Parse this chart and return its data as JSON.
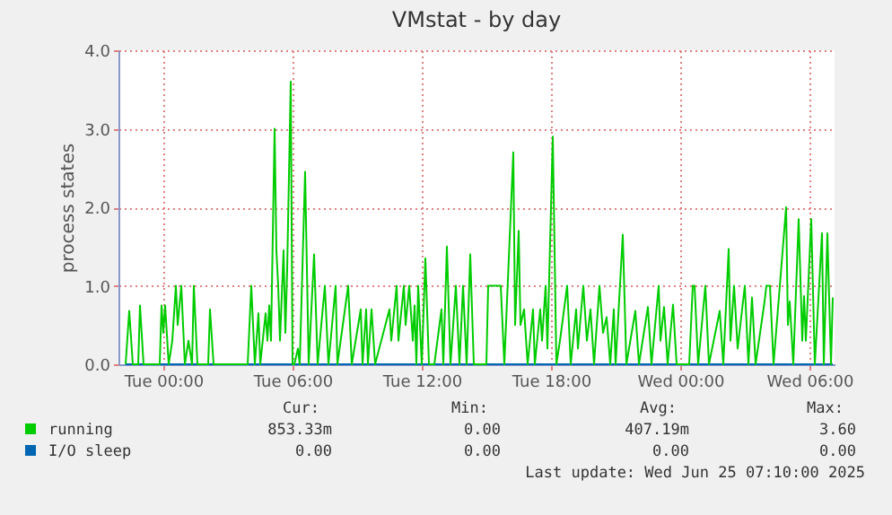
{
  "chart_data": {
    "type": "line",
    "title": "VMstat - by day",
    "ylabel": "process states",
    "xlim": [
      "2025-06-23T21:55",
      "2025-06-25T07:10"
    ],
    "ylim": [
      0,
      4
    ],
    "xticks": [
      {
        "value": "2025-06-24T00:00",
        "label": "Tue 00:00"
      },
      {
        "value": "2025-06-24T06:00",
        "label": "Tue 06:00"
      },
      {
        "value": "2025-06-24T12:00",
        "label": "Tue 12:00"
      },
      {
        "value": "2025-06-24T18:00",
        "label": "Tue 18:00"
      },
      {
        "value": "2025-06-25T00:00",
        "label": "Wed 00:00"
      },
      {
        "value": "2025-06-25T06:00",
        "label": "Wed 06:00"
      }
    ],
    "yticks": [
      {
        "value": 0,
        "label": "0.0"
      },
      {
        "value": 1,
        "label": "1.0"
      },
      {
        "value": 2,
        "label": "2.0"
      },
      {
        "value": 3,
        "label": "3.0"
      },
      {
        "value": 4,
        "label": "4.0"
      }
    ],
    "grid": true,
    "legend": "bottom",
    "line_style": "solid",
    "marker": "none",
    "series": [
      {
        "name": "I/O sleep",
        "color": "#0066b3",
        "x": [
          "2025-06-23T22:15",
          "2025-06-25T07:05"
        ],
        "values": [
          0,
          0
        ]
      },
      {
        "name": "running",
        "color": "#00cc00",
        "x": [
          "2025-06-23T22:15",
          "2025-06-23T22:25",
          "2025-06-23T22:35",
          "2025-06-23T22:50",
          "2025-06-23T22:55",
          "2025-06-23T23:05",
          "2025-06-23T23:50",
          "2025-06-23T23:55",
          "2025-06-24T00:00",
          "2025-06-24T00:05",
          "2025-06-24T00:15",
          "2025-06-24T00:25",
          "2025-06-24T00:35",
          "2025-06-24T00:40",
          "2025-06-24T00:50",
          "2025-06-24T01:00",
          "2025-06-24T01:10",
          "2025-06-24T01:20",
          "2025-06-24T01:25",
          "2025-06-24T01:35",
          "2025-06-24T02:05",
          "2025-06-24T02:10",
          "2025-06-24T02:20",
          "2025-06-24T03:55",
          "2025-06-24T04:05",
          "2025-06-24T04:15",
          "2025-06-24T04:25",
          "2025-06-24T04:30",
          "2025-06-24T04:45",
          "2025-06-24T04:50",
          "2025-06-24T04:55",
          "2025-06-24T05:00",
          "2025-06-24T05:10",
          "2025-06-24T05:15",
          "2025-06-24T05:20",
          "2025-06-24T05:25",
          "2025-06-24T05:35",
          "2025-06-24T05:40",
          "2025-06-24T05:45",
          "2025-06-24T05:55",
          "2025-06-24T06:00",
          "2025-06-24T06:05",
          "2025-06-24T06:15",
          "2025-06-24T06:20",
          "2025-06-24T06:35",
          "2025-06-24T06:45",
          "2025-06-24T07:00",
          "2025-06-24T07:10",
          "2025-06-24T07:30",
          "2025-06-24T07:40",
          "2025-06-24T08:00",
          "2025-06-24T08:05",
          "2025-06-24T08:35",
          "2025-06-24T08:45",
          "2025-06-24T09:10",
          "2025-06-24T09:15",
          "2025-06-24T09:25",
          "2025-06-24T09:30",
          "2025-06-24T09:40",
          "2025-06-24T09:50",
          "2025-06-24T10:30",
          "2025-06-24T10:35",
          "2025-06-24T10:50",
          "2025-06-24T10:55",
          "2025-06-24T11:10",
          "2025-06-24T11:15",
          "2025-06-24T11:25",
          "2025-06-24T11:35",
          "2025-06-24T11:40",
          "2025-06-24T11:45",
          "2025-06-24T11:50",
          "2025-06-24T12:00",
          "2025-06-24T12:10",
          "2025-06-24T12:20",
          "2025-06-24T12:35",
          "2025-06-24T12:55",
          "2025-06-24T13:00",
          "2025-06-24T13:10",
          "2025-06-24T13:20",
          "2025-06-24T13:35",
          "2025-06-24T13:45",
          "2025-06-24T13:55",
          "2025-06-24T14:05",
          "2025-06-24T14:15",
          "2025-06-24T14:25",
          "2025-06-24T15:00",
          "2025-06-24T15:05",
          "2025-06-24T15:40",
          "2025-06-24T15:50",
          "2025-06-24T16:15",
          "2025-06-24T16:20",
          "2025-06-24T16:30",
          "2025-06-24T16:35",
          "2025-06-24T16:45",
          "2025-06-24T16:55",
          "2025-06-24T17:10",
          "2025-06-24T17:15",
          "2025-06-24T17:30",
          "2025-06-24T17:35",
          "2025-06-24T17:45",
          "2025-06-24T17:50",
          "2025-06-24T18:05",
          "2025-06-24T18:15",
          "2025-06-24T18:25",
          "2025-06-24T18:45",
          "2025-06-24T18:55",
          "2025-06-24T19:10",
          "2025-06-24T19:15",
          "2025-06-24T19:30",
          "2025-06-24T19:40",
          "2025-06-24T19:50",
          "2025-06-24T20:00",
          "2025-06-24T20:15",
          "2025-06-24T20:25",
          "2025-06-24T20:35",
          "2025-06-24T20:45",
          "2025-06-24T20:55",
          "2025-06-24T21:00",
          "2025-06-24T21:20",
          "2025-06-24T21:30",
          "2025-06-24T21:55",
          "2025-06-24T22:05",
          "2025-06-24T22:30",
          "2025-06-24T22:40",
          "2025-06-24T23:00",
          "2025-06-24T23:05",
          "2025-06-24T23:15",
          "2025-06-24T23:25",
          "2025-06-24T23:40",
          "2025-06-24T23:50",
          "2025-06-25T00:25",
          "2025-06-25T00:35",
          "2025-06-25T00:40",
          "2025-06-25T00:50",
          "2025-06-25T01:10",
          "2025-06-25T01:20",
          "2025-06-25T01:50",
          "2025-06-25T02:00",
          "2025-06-25T02:15",
          "2025-06-25T02:20",
          "2025-06-25T02:30",
          "2025-06-25T02:40",
          "2025-06-25T03:00",
          "2025-06-25T03:10",
          "2025-06-25T03:20",
          "2025-06-25T03:30",
          "2025-06-25T03:55",
          "2025-06-25T04:00",
          "2025-06-25T04:10",
          "2025-06-25T04:20",
          "2025-06-25T04:55",
          "2025-06-25T05:00",
          "2025-06-25T05:05",
          "2025-06-25T05:15",
          "2025-06-25T05:30",
          "2025-06-25T05:40",
          "2025-06-25T05:45",
          "2025-06-25T05:50",
          "2025-06-25T06:05",
          "2025-06-25T06:15",
          "2025-06-25T06:35",
          "2025-06-25T06:40",
          "2025-06-25T06:50",
          "2025-06-25T07:00",
          "2025-06-25T07:05"
        ],
        "values": [
          0,
          0.68,
          0,
          0,
          0.75,
          0,
          0,
          0.75,
          0.4,
          0.75,
          0,
          0.3,
          1.0,
          0.5,
          1.0,
          0,
          0.3,
          0,
          1.0,
          0,
          0,
          0.7,
          0,
          0,
          1.0,
          0,
          0.65,
          0,
          0.65,
          0.3,
          0.75,
          0.3,
          3.0,
          1.45,
          1.0,
          0.3,
          1.45,
          0.4,
          1.2,
          3.6,
          0,
          0,
          0.2,
          0,
          2.45,
          0,
          1.4,
          0,
          1.0,
          0,
          1.0,
          0,
          1.0,
          0,
          0.7,
          0,
          0.7,
          0,
          0.7,
          0,
          0.7,
          0.3,
          1.0,
          0.3,
          1.0,
          0.5,
          1.0,
          0.3,
          0.75,
          0,
          1.0,
          0,
          1.35,
          0,
          0,
          0.7,
          0,
          1.5,
          0,
          1.0,
          0,
          1.0,
          0,
          1.4,
          0,
          0,
          1.0,
          1.0,
          0,
          2.7,
          0.5,
          1.7,
          0.5,
          0.7,
          0,
          0.7,
          0,
          0.7,
          0.3,
          1.0,
          0.2,
          2.9,
          0,
          0.3,
          1.0,
          0,
          0.7,
          0.2,
          1.0,
          0.3,
          0.7,
          0,
          1.0,
          0.4,
          0.6,
          0,
          0.7,
          0,
          1.65,
          0,
          0.68,
          0,
          0.73,
          0,
          1.0,
          0.3,
          0.73,
          0,
          0.76,
          0,
          0,
          1.0,
          1.0,
          0,
          1.0,
          0,
          0.68,
          0,
          1.47,
          0.3,
          1.0,
          0.2,
          1.0,
          0,
          0.85,
          0,
          0.8,
          1.0,
          1.0,
          0,
          2.0,
          0.5,
          0.8,
          0,
          1.85,
          0.3,
          0.87,
          0.3,
          1.85,
          0,
          1.67,
          0,
          1.67,
          0,
          0.85
        ]
      }
    ],
    "annotations": [
      "Cur:",
      "Min:",
      "Avg:",
      "Max:",
      "0.00",
      "0.00",
      "0.00",
      "0.00",
      "853.33m",
      "0.00",
      "407.19m",
      "3.60",
      "Last update: Wed Jun 25 07:10:00 2025"
    ]
  }
}
